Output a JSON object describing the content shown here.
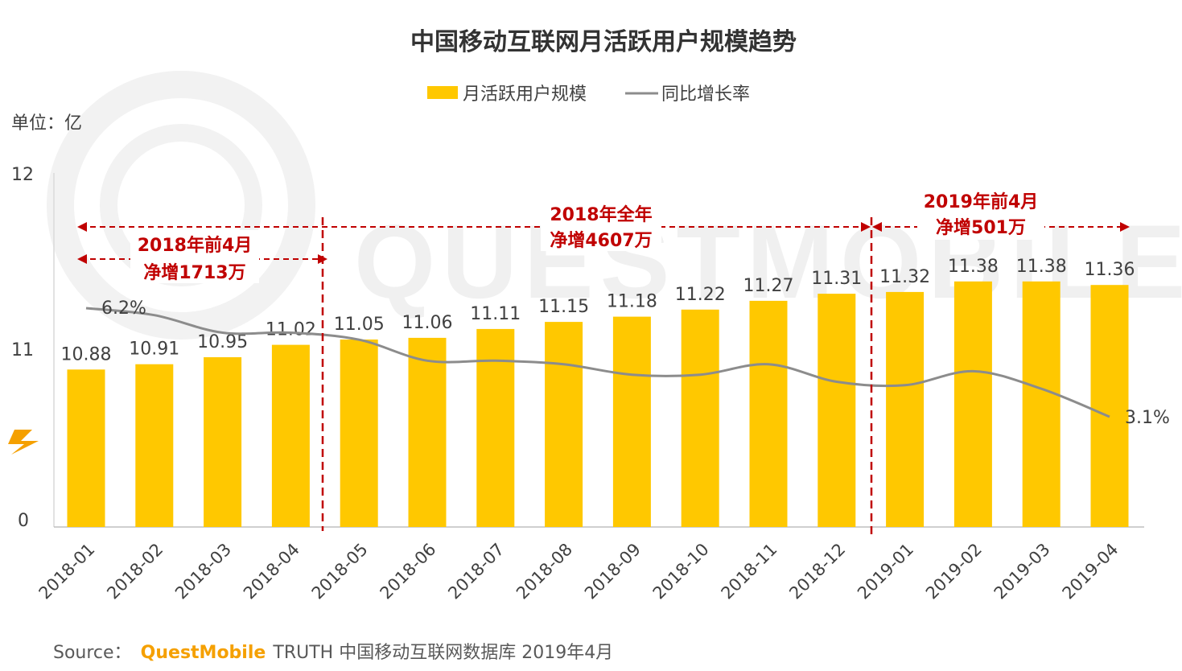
{
  "chart_data": {
    "type": "bar",
    "title": "中国移动互联网月活跃用户规模趋势",
    "unit_label": "单位：亿",
    "categories": [
      "2018-01",
      "2018-02",
      "2018-03",
      "2018-04",
      "2018-05",
      "2018-06",
      "2018-07",
      "2018-08",
      "2018-09",
      "2018-10",
      "2018-11",
      "2018-12",
      "2019-01",
      "2019-02",
      "2019-03",
      "2019-04"
    ],
    "y_axis_ticks": [
      "12",
      "11",
      "0"
    ],
    "series": [
      {
        "name": "月活跃用户规模",
        "type": "bar",
        "color": "#FFC800",
        "values": [
          10.88,
          10.91,
          10.95,
          11.02,
          11.05,
          11.06,
          11.11,
          11.15,
          11.18,
          11.22,
          11.27,
          11.31,
          11.32,
          11.38,
          11.38,
          11.36
        ],
        "labels": [
          "10.88",
          "10.91",
          "10.95",
          "11.02",
          "11.05",
          "11.06",
          "11.11",
          "11.15",
          "11.18",
          "11.22",
          "11.27",
          "11.31",
          "11.32",
          "11.38",
          "11.38",
          "11.36"
        ]
      },
      {
        "name": "同比增长率",
        "type": "line",
        "color": "#8c8c8c",
        "unit": "%",
        "values": [
          6.2,
          6.0,
          5.5,
          5.5,
          5.3,
          4.7,
          4.7,
          4.6,
          4.3,
          4.3,
          4.6,
          4.1,
          4.0,
          4.4,
          3.9,
          3.1
        ],
        "labels": [
          "6.2%",
          "",
          "",
          "",
          "",
          "",
          "",
          "",
          "",
          "",
          "",
          "",
          "",
          "",
          "",
          "3.1%"
        ]
      }
    ],
    "legend_position": "top-center",
    "annotations": [
      {
        "lines": [
          "2018年前4月",
          "净增1713万"
        ],
        "from": "2018-01",
        "to": "2018-04"
      },
      {
        "lines": [
          "2018年全年",
          "净增4607万"
        ],
        "from": "2018-01",
        "to": "2018-12"
      },
      {
        "lines": [
          "2019年前4月",
          "净增501万"
        ],
        "from": "2019-01",
        "to": "2019-04"
      }
    ]
  },
  "source": {
    "prefix": "Source：",
    "brand": "QuestMobile",
    "rest": "TRUTH 中国移动互联网数据库 2019年4月"
  },
  "watermark": "QUESTMOBILE"
}
